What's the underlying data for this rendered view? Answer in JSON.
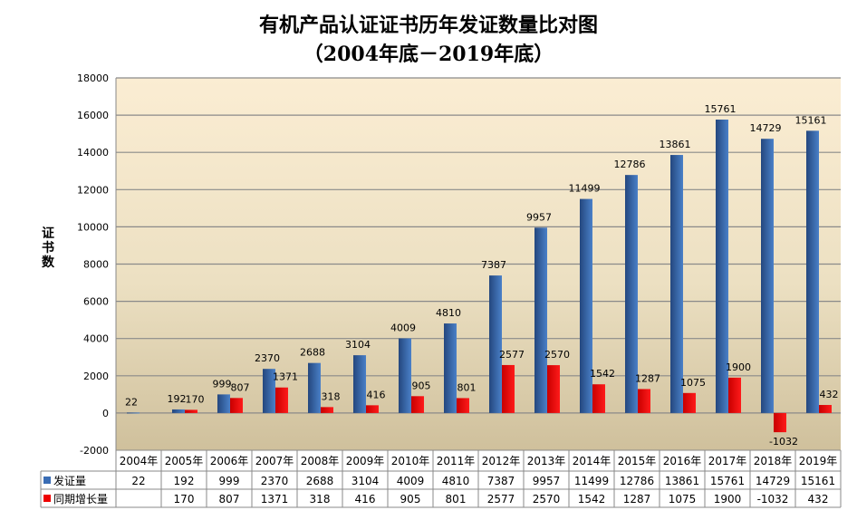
{
  "chart_data": {
    "type": "bar",
    "title": "有机产品认证证书历年发证数量比对图",
    "subtitle": "（2004年底－2019年底）",
    "ylabel": "证书数",
    "xlabel": "",
    "ylim": [
      -2000,
      18000
    ],
    "yticks": [
      -2000,
      0,
      2000,
      4000,
      6000,
      8000,
      10000,
      12000,
      14000,
      16000,
      18000
    ],
    "grid": true,
    "legend": "data-table-left",
    "categories": [
      "2004年",
      "2005年",
      "2006年",
      "2007年",
      "2008年",
      "2009年",
      "2010年",
      "2011年",
      "2012年",
      "2013年",
      "2014年",
      "2015年",
      "2016年",
      "2017年",
      "2018年",
      "2019年"
    ],
    "series": [
      {
        "name": "发证量",
        "color": "#3a6db5",
        "values": [
          22,
          192,
          999,
          2370,
          2688,
          3104,
          4009,
          4810,
          7387,
          9957,
          11499,
          12786,
          13861,
          15761,
          14729,
          15161
        ]
      },
      {
        "name": "同期增长量",
        "color": "#ee0000",
        "values": [
          null,
          170,
          807,
          1371,
          318,
          416,
          905,
          801,
          2577,
          2570,
          1542,
          1287,
          1075,
          1900,
          -1032,
          432
        ]
      }
    ]
  }
}
